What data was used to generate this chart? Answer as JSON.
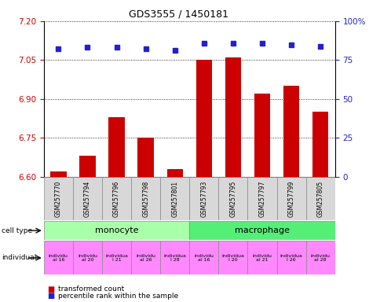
{
  "title": "GDS3555 / 1450181",
  "samples": [
    "GSM257770",
    "GSM257794",
    "GSM257796",
    "GSM257798",
    "GSM257801",
    "GSM257793",
    "GSM257795",
    "GSM257797",
    "GSM257799",
    "GSM257805"
  ],
  "transformed_count": [
    6.62,
    6.68,
    6.83,
    6.75,
    6.63,
    7.05,
    7.06,
    6.92,
    6.95,
    6.85
  ],
  "percentile_pct": [
    82,
    83,
    83,
    82,
    81,
    86,
    86,
    86,
    85,
    84
  ],
  "ylim_left": [
    6.6,
    7.2
  ],
  "ylim_right": [
    0,
    100
  ],
  "yticks_left": [
    6.6,
    6.75,
    6.9,
    7.05,
    7.2
  ],
  "yticks_right": [
    0,
    25,
    50,
    75,
    100
  ],
  "ytick_labels_right": [
    "0",
    "25",
    "50",
    "75",
    "100%"
  ],
  "bar_color": "#cc0000",
  "dot_color": "#2222cc",
  "monocyte_color": "#aaffaa",
  "macrophage_color": "#55ee77",
  "individual_color": "#ff88ff",
  "sample_bg_color": "#d8d8d8",
  "tick_color_left": "#cc0000",
  "tick_color_right": "#2222cc",
  "ind_labels": [
    "individu\nal 16",
    "individu\nal 20",
    "individua\nl 21",
    "individu\nal 26",
    "individua\nl 28",
    "individu\nal 16",
    "individua\nl 20",
    "individu\nal 21",
    "individua\nl 26",
    "individu\nal 28"
  ]
}
